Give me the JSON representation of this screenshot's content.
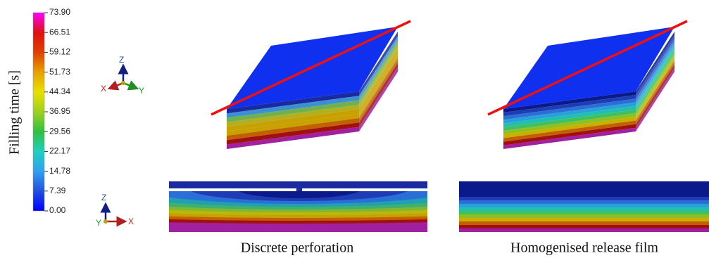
{
  "colorbar": {
    "label": "Filling time [s]",
    "ticks": [
      "73.90",
      "66.51",
      "59.12",
      "51.73",
      "44.34",
      "36.95",
      "29.56",
      "22.17",
      "14.78",
      "7.39",
      "0.00"
    ]
  },
  "triad_top": {
    "z": "Z",
    "x": "X",
    "y": "Y"
  },
  "triad_bottom": {
    "z": "Z",
    "x": "X",
    "y": "Y"
  },
  "captions": [
    "Discrete perforation",
    "Homogenised release film"
  ]
}
